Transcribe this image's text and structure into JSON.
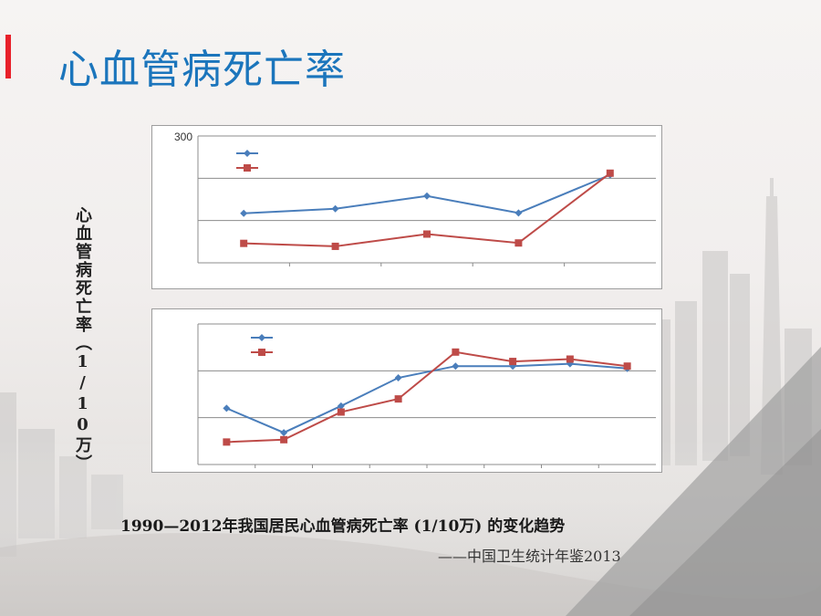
{
  "slide": {
    "title": "心血管病死亡率",
    "accent_color": "#e8202a",
    "title_color": "#1b75bc"
  },
  "y_axis_label": "心血管病死亡率（1/10万）",
  "caption": "1990—2012年我国居民心血管病死亡率 (1/10万) 的变化趋势",
  "source": "——中国卫生统计年鉴2013",
  "chart_data": [
    {
      "type": "line",
      "ylim": [
        0,
        300
      ],
      "yticks": [
        0,
        100,
        200,
        300
      ],
      "ytick_labels_visible": [
        "300"
      ],
      "grid": true,
      "legend": "top-left",
      "series": [
        {
          "color": "#4a7ebb",
          "marker": "diamond",
          "values": [
            117,
            128,
            158,
            118,
            208
          ]
        },
        {
          "color": "#be4b48",
          "marker": "square",
          "values": [
            46,
            39,
            68,
            47,
            212
          ]
        }
      ]
    },
    {
      "type": "line",
      "ylim": [
        0,
        300
      ],
      "yticks": [
        0,
        100,
        200,
        300
      ],
      "ytick_labels_visible": [],
      "grid": true,
      "legend": "top-left",
      "series": [
        {
          "color": "#4a7ebb",
          "marker": "diamond",
          "values": [
            120,
            68,
            125,
            185,
            210,
            210,
            215,
            205
          ]
        },
        {
          "color": "#be4b48",
          "marker": "square",
          "values": [
            48,
            53,
            112,
            140,
            240,
            220,
            225,
            210
          ]
        }
      ]
    }
  ]
}
